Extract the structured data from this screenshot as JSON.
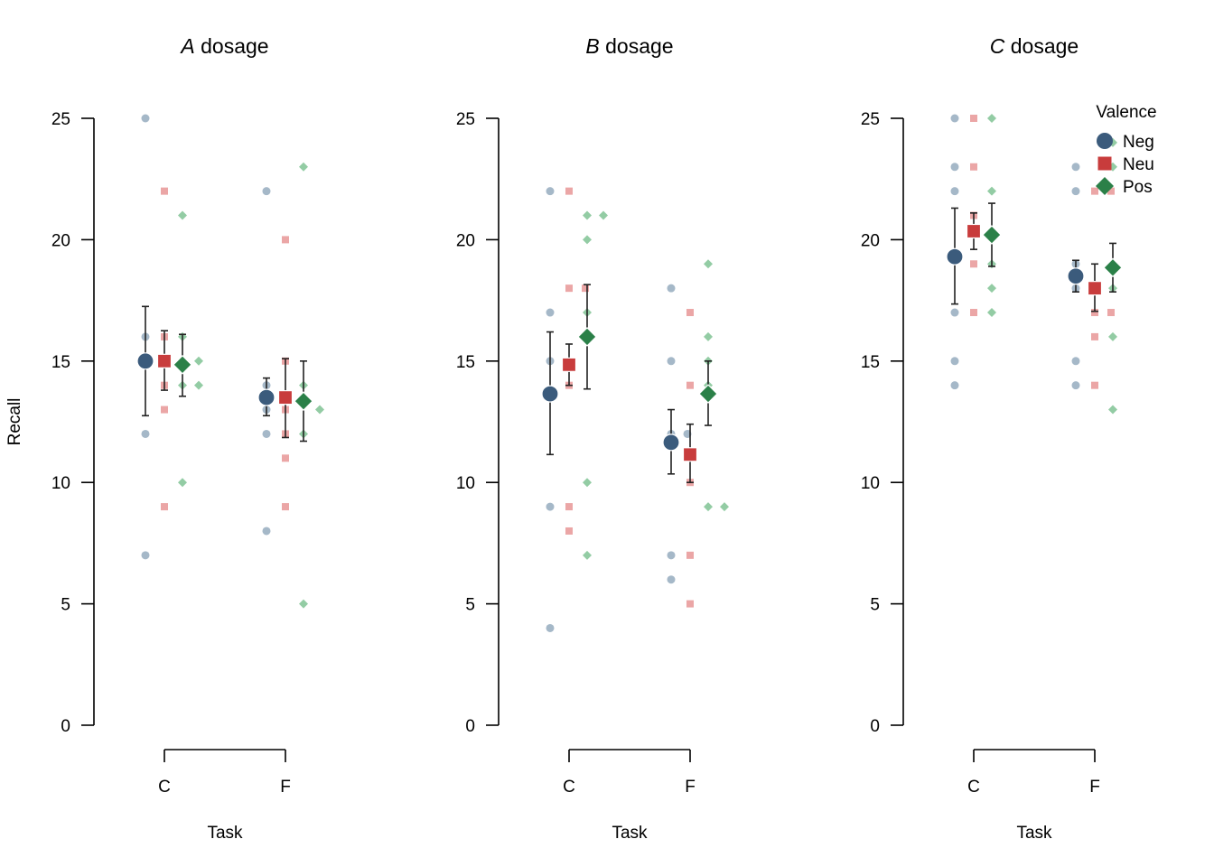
{
  "chart_data": {
    "type": "scatter",
    "ylabel": "Recall",
    "xlabel": "Task",
    "ylim": [
      0,
      25
    ],
    "yticks": [
      0,
      5,
      10,
      15,
      20,
      25
    ],
    "categories": [
      "C",
      "F"
    ],
    "legend": {
      "title": "Valence",
      "placement": "top-right",
      "entries": [
        {
          "name": "Neg",
          "color": "#3b5b7c",
          "shape": "circle"
        },
        {
          "name": "Neu",
          "color": "#c83c3c",
          "shape": "square"
        },
        {
          "name": "Pos",
          "color": "#2b8048",
          "shape": "diamond"
        }
      ]
    },
    "colors": {
      "Neg": "#3b5b7c",
      "Neu": "#c83c3c",
      "Pos": "#2b8048",
      "Neg_light": "#a5b8c8",
      "Neu_light": "#eba6a6",
      "Pos_light": "#93cca4"
    },
    "panels": [
      {
        "title_italic": "A",
        "title_rest": " dosage",
        "groups": {
          "C": {
            "Neg": {
              "mean": 15.0,
              "lo": 12.75,
              "hi": 17.25,
              "points": [
                [
                  0,
                  25
                ],
                [
                  0,
                  16
                ],
                [
                  0,
                  15
                ],
                [
                  0,
                  12
                ],
                [
                  0,
                  7
                ]
              ]
            },
            "Neu": {
              "mean": 15.0,
              "lo": 13.8,
              "hi": 16.25,
              "points": [
                [
                  0,
                  22
                ],
                [
                  0,
                  16
                ],
                [
                  0,
                  14
                ],
                [
                  0,
                  13
                ],
                [
                  0,
                  9
                ]
              ]
            },
            "Pos": {
              "mean": 14.85,
              "lo": 13.55,
              "hi": 16.1,
              "points": [
                [
                  0,
                  21
                ],
                [
                  0,
                  16
                ],
                [
                  0,
                  14
                ],
                [
                  1,
                  15
                ],
                [
                  1,
                  14
                ],
                [
                  0,
                  10
                ]
              ]
            }
          },
          "F": {
            "Neg": {
              "mean": 13.5,
              "lo": 12.75,
              "hi": 14.3,
              "points": [
                [
                  0,
                  22
                ],
                [
                  0,
                  14
                ],
                [
                  0,
                  13
                ],
                [
                  0,
                  12
                ],
                [
                  0,
                  8
                ]
              ]
            },
            "Neu": {
              "mean": 13.5,
              "lo": 11.85,
              "hi": 15.1,
              "points": [
                [
                  0,
                  20
                ],
                [
                  0,
                  15
                ],
                [
                  0,
                  13
                ],
                [
                  0,
                  12
                ],
                [
                  0,
                  11
                ],
                [
                  0,
                  9
                ]
              ]
            },
            "Pos": {
              "mean": 13.35,
              "lo": 11.7,
              "hi": 15.0,
              "points": [
                [
                  0,
                  23
                ],
                [
                  0,
                  14
                ],
                [
                  0,
                  12
                ],
                [
                  1,
                  13
                ],
                [
                  0,
                  5
                ]
              ]
            }
          }
        }
      },
      {
        "title_italic": "B",
        "title_rest": " dosage",
        "groups": {
          "C": {
            "Neg": {
              "mean": 13.65,
              "lo": 11.15,
              "hi": 16.2,
              "points": [
                [
                  0,
                  22
                ],
                [
                  0,
                  17
                ],
                [
                  0,
                  15
                ],
                [
                  0,
                  9
                ],
                [
                  0,
                  4
                ]
              ]
            },
            "Neu": {
              "mean": 14.85,
              "lo": 14.0,
              "hi": 15.7,
              "points": [
                [
                  0,
                  22
                ],
                [
                  0,
                  18
                ],
                [
                  1,
                  18
                ],
                [
                  0,
                  14
                ],
                [
                  0,
                  9
                ],
                [
                  0,
                  8
                ]
              ]
            },
            "Pos": {
              "mean": 16.0,
              "lo": 13.85,
              "hi": 18.15,
              "points": [
                [
                  0,
                  21
                ],
                [
                  1,
                  21
                ],
                [
                  0,
                  20
                ],
                [
                  0,
                  17
                ],
                [
                  0,
                  10
                ],
                [
                  0,
                  7
                ]
              ]
            }
          },
          "F": {
            "Neg": {
              "mean": 11.65,
              "lo": 10.35,
              "hi": 13.0,
              "points": [
                [
                  0,
                  18
                ],
                [
                  0,
                  15
                ],
                [
                  0,
                  12
                ],
                [
                  1,
                  12
                ],
                [
                  0,
                  7
                ],
                [
                  0,
                  6
                ]
              ]
            },
            "Neu": {
              "mean": 11.15,
              "lo": 10.0,
              "hi": 12.4,
              "points": [
                [
                  0,
                  17
                ],
                [
                  0,
                  14
                ],
                [
                  0,
                  10
                ],
                [
                  0,
                  7
                ],
                [
                  0,
                  5
                ]
              ]
            },
            "Pos": {
              "mean": 13.65,
              "lo": 12.35,
              "hi": 15.0,
              "points": [
                [
                  0,
                  19
                ],
                [
                  0,
                  16
                ],
                [
                  0,
                  15
                ],
                [
                  0,
                  14
                ],
                [
                  0,
                  9
                ],
                [
                  1,
                  9
                ]
              ]
            }
          }
        }
      },
      {
        "title_italic": "C",
        "title_rest": " dosage",
        "groups": {
          "C": {
            "Neg": {
              "mean": 19.3,
              "lo": 17.35,
              "hi": 21.3,
              "points": [
                [
                  0,
                  25
                ],
                [
                  0,
                  23
                ],
                [
                  0,
                  22
                ],
                [
                  0,
                  17
                ],
                [
                  0,
                  15
                ],
                [
                  0,
                  14
                ]
              ]
            },
            "Neu": {
              "mean": 20.35,
              "lo": 19.6,
              "hi": 21.1,
              "points": [
                [
                  0,
                  25
                ],
                [
                  0,
                  23
                ],
                [
                  0,
                  21
                ],
                [
                  0,
                  19
                ],
                [
                  0,
                  17
                ]
              ]
            },
            "Pos": {
              "mean": 20.2,
              "lo": 18.9,
              "hi": 21.5,
              "points": [
                [
                  0,
                  25
                ],
                [
                  0,
                  22
                ],
                [
                  0,
                  19
                ],
                [
                  0,
                  18
                ],
                [
                  0,
                  17
                ]
              ]
            }
          },
          "F": {
            "Neg": {
              "mean": 18.5,
              "lo": 17.85,
              "hi": 19.15,
              "points": [
                [
                  0,
                  23
                ],
                [
                  0,
                  22
                ],
                [
                  0,
                  19
                ],
                [
                  0,
                  18
                ],
                [
                  0,
                  15
                ],
                [
                  0,
                  14
                ]
              ]
            },
            "Neu": {
              "mean": 18.0,
              "lo": 17.05,
              "hi": 19.0,
              "points": [
                [
                  0,
                  22
                ],
                [
                  1,
                  22
                ],
                [
                  0,
                  17
                ],
                [
                  1,
                  17
                ],
                [
                  0,
                  16
                ],
                [
                  0,
                  14
                ]
              ]
            },
            "Pos": {
              "mean": 18.85,
              "lo": 17.85,
              "hi": 19.85,
              "points": [
                [
                  0,
                  24
                ],
                [
                  0,
                  23
                ],
                [
                  0,
                  18
                ],
                [
                  0,
                  16
                ],
                [
                  0,
                  13
                ]
              ]
            }
          }
        }
      }
    ]
  }
}
